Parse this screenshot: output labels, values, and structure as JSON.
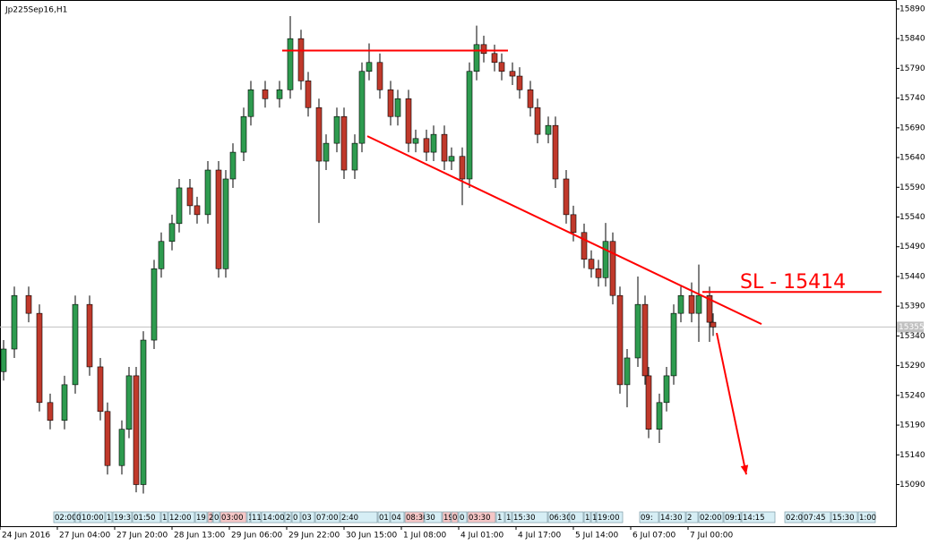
{
  "chart_data": {
    "type": "candlestick",
    "title": "Jp225Sep16,H1",
    "up_color": "#2e9b4f",
    "down_color": "#c0392b",
    "wick_color": "#000000",
    "xlim": [
      0,
      250
    ],
    "ylim": [
      15020,
      15905
    ],
    "yticks": [
      15090,
      15140,
      15190,
      15240,
      15290,
      15340,
      15390,
      15440,
      15490,
      15540,
      15590,
      15640,
      15690,
      15740,
      15790,
      15840,
      15890
    ],
    "xticks": [
      {
        "value": 0,
        "label": "24 Jun 2016"
      },
      {
        "value": 16,
        "label": "27 Jun 04:00"
      },
      {
        "value": 32,
        "label": "27 Jun 20:00"
      },
      {
        "value": 48,
        "label": "28 Jun 13:00"
      },
      {
        "value": 64,
        "label": "29 Jun 06:00"
      },
      {
        "value": 80,
        "label": "29 Jun 22:00"
      },
      {
        "value": 96,
        "label": "30 Jun 15:00"
      },
      {
        "value": 112,
        "label": "1 Jul 08:00"
      },
      {
        "value": 128,
        "label": "4 Jul 01:00"
      },
      {
        "value": 144,
        "label": "4 Jul 17:00"
      },
      {
        "value": 160,
        "label": "5 Jul 14:00"
      },
      {
        "value": 176,
        "label": "6 Jul 07:00"
      },
      {
        "value": 192,
        "label": "7 Jul 00:00"
      }
    ],
    "x": [
      1,
      4,
      8,
      11,
      14,
      18,
      21,
      25,
      28,
      30,
      34,
      36,
      38,
      40,
      43,
      45,
      48,
      50,
      53,
      55,
      58,
      61,
      63,
      65,
      68,
      70,
      74,
      78,
      81,
      84,
      86,
      89,
      91,
      94,
      96,
      99,
      101,
      103,
      106,
      109,
      111,
      114,
      116,
      119,
      121,
      124,
      126,
      129,
      131,
      133,
      135,
      138,
      140,
      143,
      145,
      148,
      150,
      153,
      155,
      158,
      160,
      163,
      165,
      167,
      169,
      171,
      173,
      175,
      178,
      180,
      181,
      184,
      186,
      188,
      190,
      193,
      195,
      198,
      199
    ],
    "open": [
      15280,
      15318,
      15408,
      15378,
      15228,
      15198,
      15258,
      15393,
      15288,
      15213,
      15122,
      15183,
      15273,
      15090,
      15333,
      15453,
      15499,
      15529,
      15589,
      15559,
      15544,
      15619,
      15453,
      15604,
      15649,
      15709,
      15754,
      15739,
      15754,
      15840,
      15769,
      15724,
      15634,
      15664,
      15709,
      15619,
      15664,
      15785,
      15800,
      15754,
      15709,
      15739,
      15664,
      15672,
      15649,
      15679,
      15634,
      15642,
      15604,
      15785,
      15830,
      15815,
      15800,
      15785,
      15777,
      15754,
      15724,
      15679,
      15694,
      15604,
      15544,
      15514,
      15469,
      15453,
      15438,
      15499,
      15408,
      15258,
      15303,
      15393,
      15273,
      15183,
      15228,
      15273,
      15378,
      15408,
      15378,
      15408,
      15363
    ],
    "high": [
      15333,
      15423,
      15423,
      15393,
      15243,
      15273,
      15408,
      15408,
      15303,
      15228,
      15198,
      15288,
      15288,
      15348,
      15468,
      15514,
      15544,
      15604,
      15604,
      15574,
      15634,
      15634,
      15619,
      15664,
      15724,
      15769,
      15769,
      15769,
      15878,
      15855,
      15784,
      15739,
      15679,
      15724,
      15724,
      15679,
      15800,
      15832,
      15815,
      15769,
      15754,
      15754,
      15687,
      15687,
      15694,
      15694,
      15657,
      15657,
      15800,
      15862,
      15845,
      15830,
      15815,
      15800,
      15792,
      15769,
      15739,
      15709,
      15709,
      15619,
      15559,
      15529,
      15484,
      15468,
      15530,
      15514,
      15423,
      15318,
      15440,
      15408,
      15288,
      15243,
      15288,
      15393,
      15423,
      15430,
      15460,
      15423,
      15378
    ],
    "low": [
      15265,
      15303,
      15363,
      15213,
      15183,
      15183,
      15243,
      15273,
      15198,
      15107,
      15107,
      15168,
      15077,
      15075,
      15318,
      15438,
      15484,
      15514,
      15544,
      15529,
      15529,
      15438,
      15438,
      15589,
      15634,
      15694,
      15724,
      15724,
      15739,
      15754,
      15709,
      15530,
      15619,
      15649,
      15604,
      15604,
      15649,
      15770,
      15739,
      15694,
      15694,
      15649,
      15649,
      15634,
      15634,
      15619,
      15619,
      15560,
      15589,
      15770,
      15800,
      15785,
      15770,
      15762,
      15739,
      15709,
      15664,
      15664,
      15589,
      15529,
      15499,
      15454,
      15438,
      15423,
      15423,
      15393,
      15243,
      15220,
      15288,
      15258,
      15168,
      15160,
      15213,
      15258,
      15363,
      15363,
      15330,
      15330,
      15340
    ],
    "close": [
      15318,
      15408,
      15378,
      15228,
      15198,
      15258,
      15393,
      15288,
      15213,
      15122,
      15183,
      15273,
      15090,
      15333,
      15453,
      15499,
      15529,
      15589,
      15559,
      15544,
      15619,
      15453,
      15604,
      15649,
      15709,
      15754,
      15739,
      15754,
      15840,
      15769,
      15724,
      15634,
      15664,
      15709,
      15619,
      15664,
      15785,
      15800,
      15754,
      15709,
      15739,
      15664,
      15672,
      15649,
      15679,
      15634,
      15642,
      15604,
      15785,
      15830,
      15815,
      15800,
      15785,
      15777,
      15754,
      15724,
      15679,
      15694,
      15604,
      15544,
      15514,
      15469,
      15453,
      15438,
      15499,
      15408,
      15258,
      15303,
      15393,
      15273,
      15183,
      15228,
      15273,
      15378,
      15408,
      15378,
      15408,
      15363,
      15355
    ],
    "current_price": 15355,
    "lines": [
      {
        "color": "#ff0000",
        "x": [
          78.75,
          141.75
        ],
        "y": [
          15820,
          15820
        ]
      },
      {
        "color": "#ff0000",
        "x": [
          102.5,
          212.5
        ],
        "y": [
          15676,
          15360
        ]
      },
      {
        "color": "#ff0000",
        "x": [
          196,
          246
        ],
        "y": [
          15414,
          15414
        ]
      }
    ],
    "arrow": {
      "color": "#ff0000",
      "x": [
        200,
        208.25
      ],
      "y": [
        15345,
        15107
      ]
    },
    "annotation": "SL - 15414",
    "sessions": [
      {
        "x": 15,
        "label": "02:00",
        "color": "#d6eef5"
      },
      {
        "x": 21,
        "label": "0",
        "color": "#d6eef5"
      },
      {
        "x": 22.5,
        "label": "10:00",
        "color": "#d6eef5"
      },
      {
        "x": 29.5,
        "label": "1",
        "color": "#d6eef5"
      },
      {
        "x": 31.5,
        "label": "19:3",
        "color": "#d6eef5"
      },
      {
        "x": 37,
        "label": "01:50",
        "color": "#d6eef5"
      },
      {
        "x": 45,
        "label": "1",
        "color": "#d6eef5"
      },
      {
        "x": 47,
        "label": "12:00",
        "color": "#d6eef5"
      },
      {
        "x": 54.5,
        "label": "19",
        "color": "#d6eef5"
      },
      {
        "x": 58,
        "label": "2",
        "color": "#f5c6c6"
      },
      {
        "x": 59.5,
        "label": "0",
        "color": "#d6eef5"
      },
      {
        "x": 61.5,
        "label": "03:00",
        "color": "#f5c6c6"
      },
      {
        "x": 69,
        "label": "1",
        "color": "#d6eef5"
      },
      {
        "x": 70,
        "label": "11",
        "color": "#d6eef5"
      },
      {
        "x": 73,
        "label": "14:00",
        "color": "#d6eef5"
      },
      {
        "x": 79.5,
        "label": "2",
        "color": "#d6eef5"
      },
      {
        "x": 81.5,
        "label": "0",
        "color": "#d6eef5"
      },
      {
        "x": 84,
        "label": "03",
        "color": "#d6eef5"
      },
      {
        "x": 88,
        "label": "07:00",
        "color": "#d6eef5"
      },
      {
        "x": 95,
        "label": "2:40",
        "color": "#d6eef5"
      },
      {
        "x": 105.5,
        "label": "01",
        "color": "#d6eef5"
      },
      {
        "x": 109,
        "label": "04",
        "color": "#d6eef5"
      },
      {
        "x": 113,
        "label": "08:30",
        "color": "#f5c6c6"
      },
      {
        "x": 118.5,
        "label": "30",
        "color": "#d6eef5"
      },
      {
        "x": 123.5,
        "label": "19",
        "color": "#f5c6c6"
      },
      {
        "x": 126,
        "label": "0",
        "color": "#f5c6c6"
      },
      {
        "x": 128,
        "label": "0",
        "color": "#d6eef5"
      },
      {
        "x": 130.5,
        "label": "03:30",
        "color": "#f5c6c6"
      },
      {
        "x": 138.5,
        "label": "1",
        "color": "#d6eef5"
      },
      {
        "x": 141,
        "label": "1",
        "color": "#d6eef5"
      },
      {
        "x": 143,
        "label": "15:30",
        "color": "#d6eef5"
      },
      {
        "x": 153,
        "label": "06:30",
        "color": "#d6eef5"
      },
      {
        "x": 159,
        "label": "0",
        "color": "#d6eef5"
      },
      {
        "x": 163,
        "label": "1",
        "color": "#d6eef5"
      },
      {
        "x": 165,
        "label": "1",
        "color": "#d6eef5"
      },
      {
        "x": 166.5,
        "label": "19:00",
        "color": "#d6eef5",
        "end": 174
      },
      {
        "x": 178.5,
        "label": "09:",
        "color": "#d6eef5"
      },
      {
        "x": 184,
        "label": "14:30",
        "color": "#d6eef5"
      },
      {
        "x": 191.5,
        "label": "2",
        "color": "#d6eef5"
      },
      {
        "x": 195,
        "label": "02:00",
        "color": "#d6eef5"
      },
      {
        "x": 202,
        "label": "09:1",
        "color": "#d6eef5"
      },
      {
        "x": 207,
        "label": "14:15",
        "color": "#d6eef5",
        "end": 216.5
      },
      {
        "x": 219,
        "label": "02:0",
        "color": "#d6eef5"
      },
      {
        "x": 224,
        "label": "07:45",
        "color": "#d6eef5"
      },
      {
        "x": 232,
        "label": "15:30",
        "color": "#d6eef5"
      },
      {
        "x": 239.5,
        "label": "1:00",
        "color": "#d6eef5",
        "end": 244.5
      }
    ]
  }
}
